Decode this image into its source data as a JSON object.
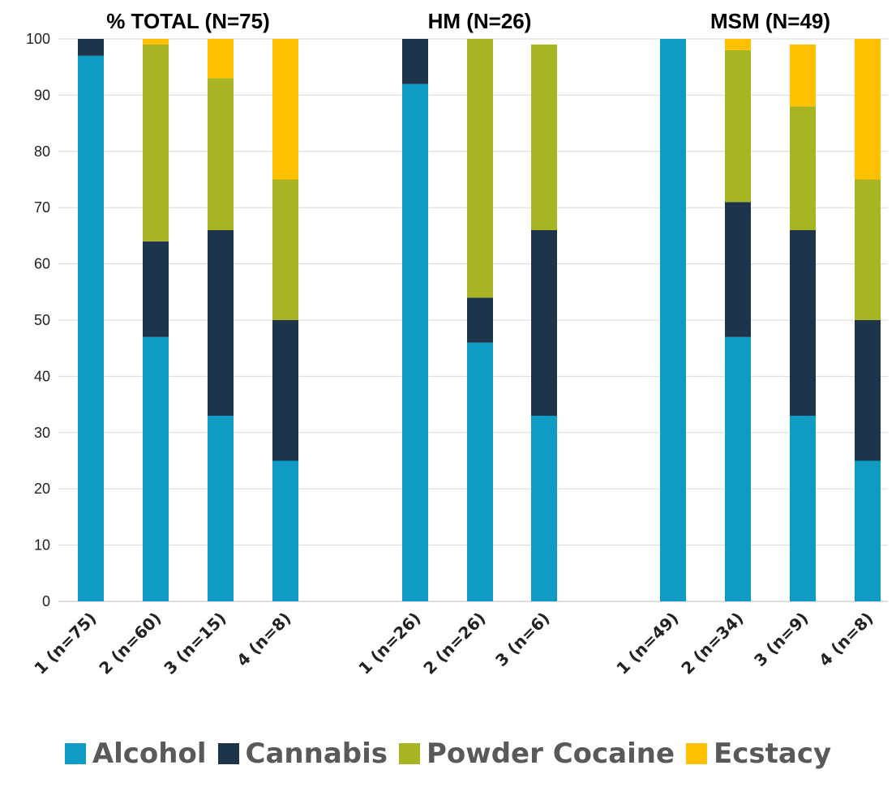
{
  "chart_data": {
    "type": "bar",
    "stacked": true,
    "ylim": [
      0,
      100
    ],
    "yticks": [
      0,
      10,
      20,
      30,
      40,
      50,
      60,
      70,
      80,
      90,
      100
    ],
    "grid": true,
    "legend_position": "bottom",
    "groups": [
      {
        "title": "% TOTAL (N=75)",
        "categories": [
          "1 (n=75)",
          "2 (n=60)",
          "3 (n=15)",
          "4 (n=8)"
        ]
      },
      {
        "title": "HM (N=26)",
        "categories": [
          "1 (n=26)",
          "2 (n=26)",
          "3 (n=6)"
        ]
      },
      {
        "title": "MSM (N=49)",
        "categories": [
          "1 (n=49)",
          "2 (n=34)",
          "3 (n=9)",
          "4 (n=8)"
        ]
      }
    ],
    "series": [
      {
        "name": "Alcohol",
        "color": "#0f9bc3",
        "values": [
          97,
          47,
          33,
          25,
          92,
          46,
          33,
          100,
          47,
          33,
          25
        ]
      },
      {
        "name": "Cannabis",
        "color": "#1e344b",
        "values": [
          3,
          17,
          33,
          25,
          8,
          8,
          33,
          0,
          24,
          33,
          25
        ]
      },
      {
        "name": "Powder Cocaine",
        "color": "#a7b424",
        "values": [
          0,
          35,
          27,
          25,
          0,
          46,
          33,
          0,
          27,
          22,
          25
        ]
      },
      {
        "name": "Ecstacy",
        "color": "#ffc000",
        "values": [
          0,
          1,
          7,
          25,
          0,
          0,
          0,
          0,
          2,
          11,
          25
        ]
      }
    ]
  }
}
